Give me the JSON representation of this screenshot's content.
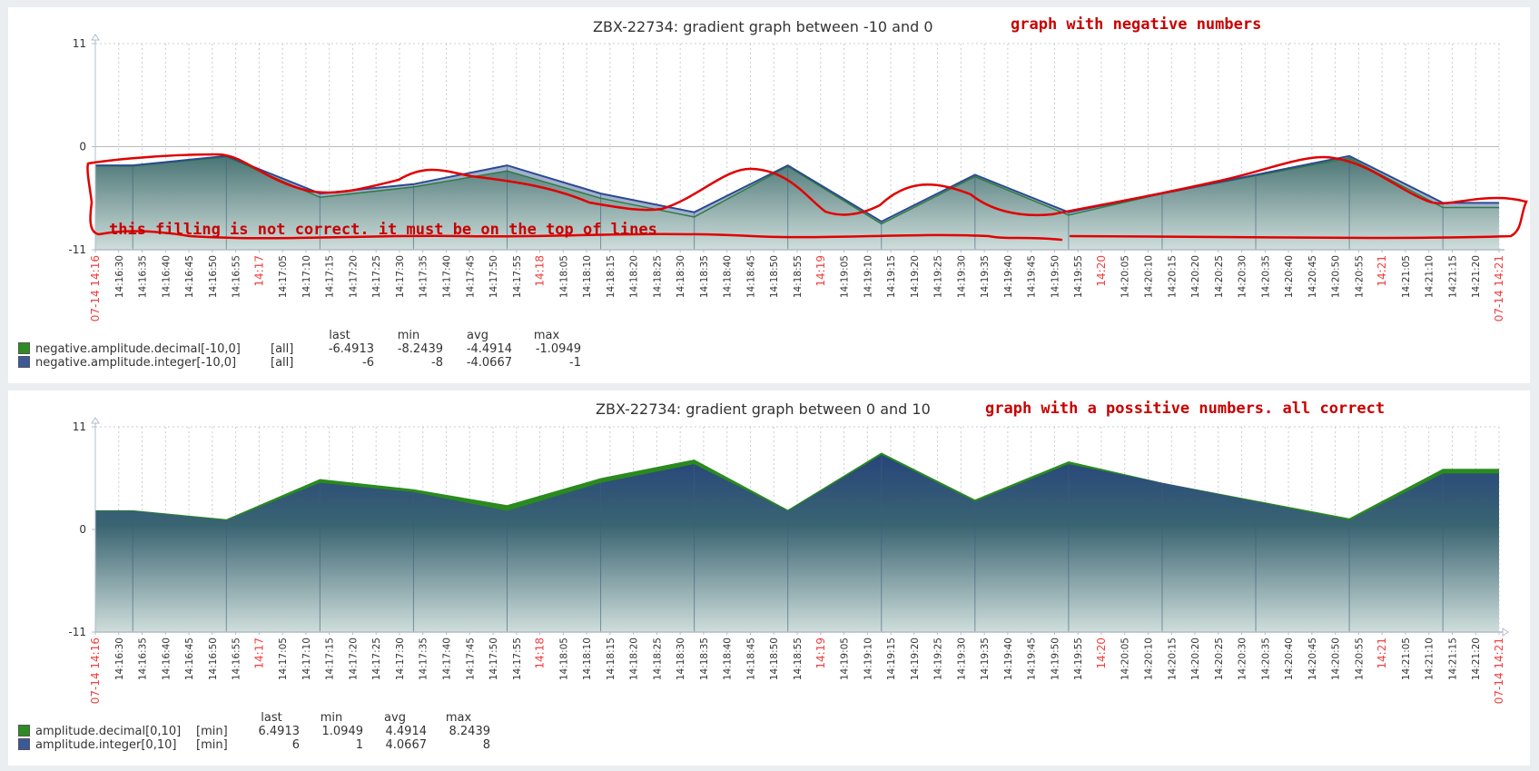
{
  "graphs": [
    {
      "title": "ZBX-22734: gradient graph between -10 and 0",
      "annotation_title": "graph with negative numbers",
      "annotation_body": "this filling is not correct. it must be on the top of lines",
      "legend": {
        "headers": [
          "last",
          "min",
          "avg",
          "max"
        ],
        "rows": [
          {
            "name": "negative.amplitude.decimal[-10,0]",
            "func": "[all]",
            "color": "#2e8b22",
            "last": "-6.4913",
            "min": "-8.2439",
            "avg": "-4.4914",
            "max": "-1.0949"
          },
          {
            "name": "negative.amplitude.integer[-10,0]",
            "func": "[all]",
            "color": "#3b5998",
            "last": "-6",
            "min": "-8",
            "avg": "-4.0667",
            "max": "-1"
          }
        ]
      }
    },
    {
      "title": "ZBX-22734: gradient graph between 0 and 10",
      "annotation_title": "graph with a possitive numbers. all correct",
      "legend": {
        "headers": [
          "last",
          "min",
          "avg",
          "max"
        ],
        "rows": [
          {
            "name": "amplitude.decimal[0,10]",
            "func": "[min]",
            "color": "#2e8b22",
            "last": "6.4913",
            "min": "1.0949",
            "avg": "4.4914",
            "max": "8.2439"
          },
          {
            "name": "amplitude.integer[0,10]",
            "func": "[min]",
            "color": "#3b5998",
            "last": "6",
            "min": "1",
            "avg": "4.0667",
            "max": "8"
          }
        ]
      }
    }
  ],
  "chart_data": [
    {
      "type": "area",
      "title": "ZBX-22734: gradient graph between -10 and 0",
      "ylim": [
        -11,
        11
      ],
      "yticks": [
        "11",
        "0",
        "-11"
      ],
      "x_start_label": "07-14 14:16",
      "x_end_label": "07-14 14:21",
      "x_range_seconds": [
        0,
        300
      ],
      "x_tick_labels": [
        "07-14 14:16",
        "14:16:30",
        "14:16:35",
        "14:16:40",
        "14:16:45",
        "14:16:50",
        "14:16:55",
        "14:17",
        "14:17:05",
        "14:17:10",
        "14:17:15",
        "14:17:20",
        "14:17:25",
        "14:17:30",
        "14:17:35",
        "14:17:40",
        "14:17:45",
        "14:17:50",
        "14:17:55",
        "14:18",
        "14:18:05",
        "14:18:10",
        "14:18:15",
        "14:18:20",
        "14:18:25",
        "14:18:30",
        "14:18:35",
        "14:18:40",
        "14:18:45",
        "14:18:50",
        "14:18:55",
        "14:19",
        "14:19:05",
        "14:19:10",
        "14:19:15",
        "14:19:20",
        "14:19:25",
        "14:19:30",
        "14:19:35",
        "14:19:40",
        "14:19:45",
        "14:19:50",
        "14:19:55",
        "14:20",
        "14:20:05",
        "14:20:10",
        "14:20:15",
        "14:20:20",
        "14:20:25",
        "14:20:30",
        "14:20:35",
        "14:20:40",
        "14:20:45",
        "14:20:50",
        "14:20:55",
        "14:21",
        "14:21:05",
        "14:21:10",
        "14:21:15",
        "14:21:20",
        "07-14 14:21"
      ],
      "x_seconds": [
        0,
        8,
        28,
        48,
        68,
        88,
        108,
        128,
        148,
        168,
        188,
        208,
        228,
        248,
        268,
        288,
        300
      ],
      "series": [
        {
          "name": "negative.amplitude.integer[-10,0]",
          "color": "#3b5998",
          "values": [
            -2,
            -2,
            -1,
            -5,
            -4,
            -2,
            -5,
            -7,
            -2,
            -8,
            -3,
            -7,
            -5,
            -3,
            -1,
            -6,
            -6
          ]
        },
        {
          "name": "negative.amplitude.decimal[-10,0]",
          "color": "#2e8b22",
          "values": [
            -2.05,
            -2.05,
            -1.09,
            -5.4,
            -4.3,
            -2.6,
            -5.5,
            -7.5,
            -2.1,
            -8.24,
            -3.2,
            -7.3,
            -5.0,
            -3.1,
            -1.2,
            -6.49,
            -6.49
          ]
        }
      ]
    },
    {
      "type": "area",
      "title": "ZBX-22734: gradient graph between 0 and 10",
      "ylim": [
        -11,
        11
      ],
      "yticks": [
        "11",
        "0",
        "-11"
      ],
      "x_start_label": "07-14 14:16",
      "x_end_label": "07-14 14:21",
      "x_range_seconds": [
        0,
        300
      ],
      "x_tick_labels": [
        "07-14 14:16",
        "14:16:30",
        "14:16:35",
        "14:16:40",
        "14:16:45",
        "14:16:50",
        "14:16:55",
        "14:17",
        "14:17:05",
        "14:17:10",
        "14:17:15",
        "14:17:20",
        "14:17:25",
        "14:17:30",
        "14:17:35",
        "14:17:40",
        "14:17:45",
        "14:17:50",
        "14:17:55",
        "14:18",
        "14:18:05",
        "14:18:10",
        "14:18:15",
        "14:18:20",
        "14:18:25",
        "14:18:30",
        "14:18:35",
        "14:18:40",
        "14:18:45",
        "14:18:50",
        "14:18:55",
        "14:19",
        "14:19:05",
        "14:19:10",
        "14:19:15",
        "14:19:20",
        "14:19:25",
        "14:19:30",
        "14:19:35",
        "14:19:40",
        "14:19:45",
        "14:19:50",
        "14:19:55",
        "14:20",
        "14:20:05",
        "14:20:10",
        "14:20:15",
        "14:20:20",
        "14:20:25",
        "14:20:30",
        "14:20:35",
        "14:20:40",
        "14:20:45",
        "14:20:50",
        "14:20:55",
        "14:21",
        "14:21:05",
        "14:21:10",
        "14:21:15",
        "14:21:20",
        "07-14 14:21"
      ],
      "x_seconds": [
        0,
        8,
        28,
        48,
        68,
        88,
        108,
        128,
        148,
        168,
        188,
        208,
        228,
        248,
        268,
        288,
        300
      ],
      "series": [
        {
          "name": "amplitude.decimal[0,10]",
          "color": "#2e8b22",
          "values": [
            2.05,
            2.05,
            1.09,
            5.4,
            4.3,
            2.6,
            5.5,
            7.5,
            2.1,
            8.24,
            3.2,
            7.3,
            5.0,
            3.1,
            1.2,
            6.49,
            6.49
          ]
        },
        {
          "name": "amplitude.integer[0,10]",
          "color": "#3b5998",
          "values": [
            2,
            2,
            1,
            5,
            4,
            2,
            5,
            7,
            2,
            8,
            3,
            7,
            5,
            3,
            1,
            6,
            6
          ]
        }
      ]
    }
  ]
}
